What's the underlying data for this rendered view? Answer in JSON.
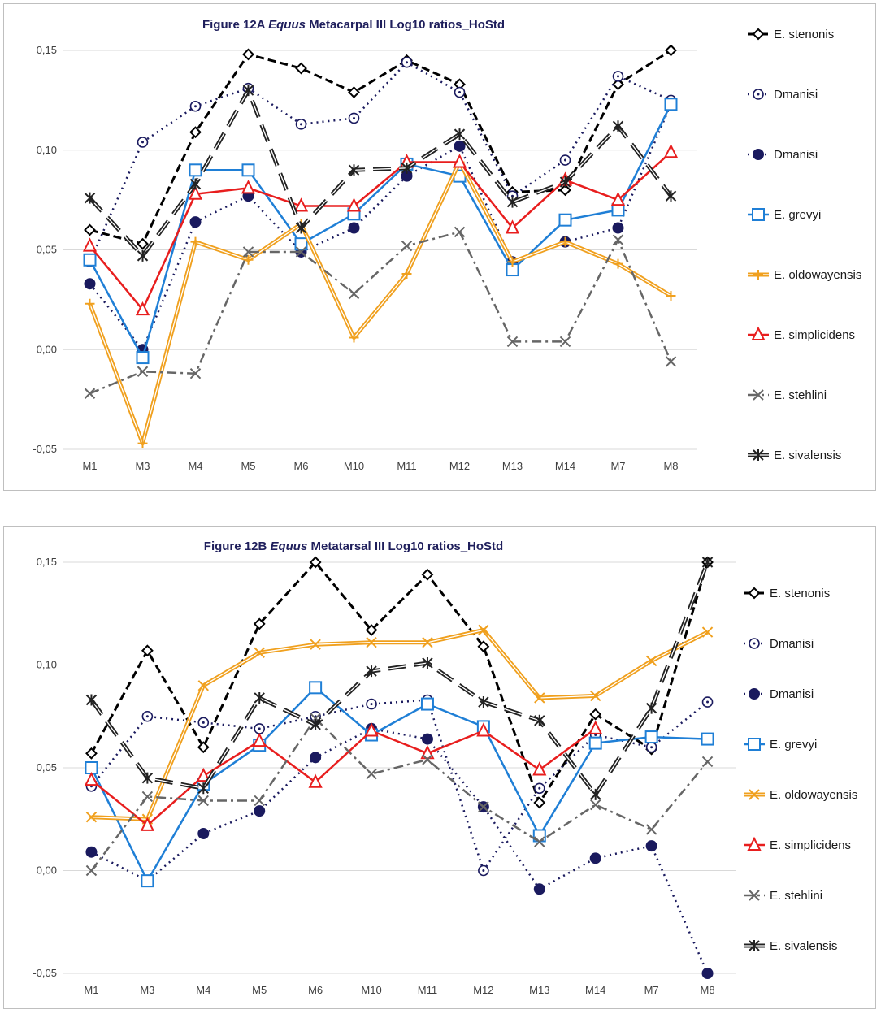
{
  "chart_data": [
    {
      "type": "line",
      "title_prefix": "Figure 12A ",
      "title_italic": "Equus",
      "title_suffix": " Metacarpal III Log10 ratios_HoStd",
      "categories": [
        "M1",
        "M3",
        "M4",
        "M5",
        "M6",
        "M10",
        "M11",
        "M12",
        "M13",
        "M14",
        "M7",
        "M8"
      ],
      "ylim": [
        -0.05,
        0.15
      ],
      "yticks": [
        "-0,05",
        "0,00",
        "0,05",
        "0,10",
        "0,15"
      ],
      "series": [
        {
          "name": "E. stenonis",
          "marker": "diamond",
          "color": "#000000",
          "dash": "10,5",
          "width": 3,
          "values": [
            0.06,
            0.053,
            0.109,
            0.148,
            0.141,
            0.129,
            0.145,
            0.133,
            0.079,
            0.08,
            0.133,
            0.15
          ]
        },
        {
          "name": "Dmanisi",
          "marker": "circle-open",
          "color": "#1a1a5e",
          "dash": "2,5",
          "width": 2.5,
          "values": [
            0.044,
            0.104,
            0.122,
            0.131,
            0.113,
            0.116,
            0.144,
            0.129,
            0.077,
            0.095,
            0.137,
            0.125
          ]
        },
        {
          "name": "Dmanisi",
          "marker": "circle-filled",
          "color": "#1a1a5e",
          "dash": "2,5",
          "width": 2.5,
          "values": [
            0.033,
            0.0,
            0.064,
            0.077,
            0.049,
            0.061,
            0.087,
            0.102,
            0.044,
            0.054,
            0.061,
            0.123
          ]
        },
        {
          "name": "E. grevyi",
          "marker": "square",
          "color": "#1f7fd6",
          "dash": "",
          "width": 2.5,
          "values": [
            0.045,
            -0.004,
            0.09,
            0.09,
            0.053,
            0.068,
            0.093,
            0.087,
            0.04,
            0.065,
            0.07,
            0.123
          ]
        },
        {
          "name": "E. oldowayensis",
          "marker": "plus",
          "color": "#f0a01e",
          "dash": "",
          "width": 2,
          "double": true,
          "values": [
            0.023,
            -0.047,
            0.054,
            0.045,
            0.063,
            0.006,
            0.038,
            0.094,
            0.044,
            0.054,
            0.043,
            0.027
          ]
        },
        {
          "name": "E. simplicidens",
          "marker": "triangle",
          "color": "#e81e1e",
          "dash": "",
          "width": 2.5,
          "values": [
            0.052,
            0.02,
            0.078,
            0.081,
            0.072,
            0.072,
            0.094,
            0.094,
            0.061,
            0.085,
            0.075,
            0.099
          ]
        },
        {
          "name": "E. stehlini",
          "marker": "x",
          "color": "#666666",
          "dash": "12,5,3,5",
          "width": 2.5,
          "values": [
            -0.022,
            -0.011,
            -0.012,
            0.049,
            0.049,
            0.028,
            0.052,
            0.059,
            0.004,
            0.004,
            0.055,
            -0.006
          ]
        },
        {
          "name": "E. sivalensis",
          "marker": "star",
          "color": "#222222",
          "dash": "22,10",
          "width": 2,
          "double": true,
          "values": [
            0.076,
            0.047,
            0.083,
            0.13,
            0.061,
            0.09,
            0.091,
            0.108,
            0.074,
            0.084,
            0.112,
            0.077
          ]
        }
      ]
    },
    {
      "type": "line",
      "title_prefix": "Figure 12B ",
      "title_italic": "Equus",
      "title_suffix": " Metatarsal III Log10 ratios_HoStd",
      "categories": [
        "M1",
        "M3",
        "M4",
        "M5",
        "M6",
        "M10",
        "M11",
        "M12",
        "M13",
        "M14",
        "M7",
        "M8"
      ],
      "ylim": [
        -0.05,
        0.15
      ],
      "yticks": [
        "-0,05",
        "0,00",
        "0,05",
        "0,10",
        "0,15"
      ],
      "series": [
        {
          "name": "E. stenonis",
          "marker": "diamond",
          "color": "#000000",
          "dash": "10,5",
          "width": 3,
          "values": [
            0.057,
            0.107,
            0.06,
            0.12,
            0.15,
            0.117,
            0.144,
            0.109,
            0.033,
            0.076,
            0.059,
            0.15
          ]
        },
        {
          "name": "Dmanisi",
          "marker": "circle-open",
          "color": "#1a1a5e",
          "dash": "2,5",
          "width": 2.5,
          "values": [
            0.041,
            0.075,
            0.072,
            0.069,
            0.075,
            0.081,
            0.083,
            0.0,
            0.04,
            0.066,
            0.06,
            0.082
          ]
        },
        {
          "name": "Dmanisi",
          "marker": "circle-filled",
          "color": "#1a1a5e",
          "dash": "2,5",
          "width": 2.5,
          "values": [
            0.009,
            -0.005,
            0.018,
            0.029,
            0.055,
            0.069,
            0.064,
            0.031,
            -0.009,
            0.006,
            0.012,
            -0.05
          ]
        },
        {
          "name": "E. grevyi",
          "marker": "square",
          "color": "#1f7fd6",
          "dash": "",
          "width": 2.5,
          "values": [
            0.05,
            -0.005,
            0.042,
            0.061,
            0.089,
            0.066,
            0.081,
            0.07,
            0.017,
            0.062,
            0.065,
            0.064
          ]
        },
        {
          "name": "E. oldowayensis",
          "marker": "x",
          "color": "#f0a01e",
          "dash": "",
          "width": 2,
          "double": true,
          "values": [
            0.026,
            0.025,
            0.09,
            0.106,
            0.11,
            0.111,
            0.111,
            0.117,
            0.084,
            0.085,
            0.102,
            0.116
          ]
        },
        {
          "name": "E. simplicidens",
          "marker": "triangle",
          "color": "#e81e1e",
          "dash": "",
          "width": 2.5,
          "values": [
            0.044,
            0.022,
            0.046,
            0.063,
            0.043,
            0.068,
            0.057,
            0.068,
            0.049,
            0.069,
            null,
            null
          ]
        },
        {
          "name": "E. stehlini",
          "marker": "x",
          "color": "#666666",
          "dash": "12,5,3,5",
          "width": 2.5,
          "values": [
            0.0,
            0.036,
            0.034,
            0.034,
            0.074,
            0.047,
            0.054,
            0.031,
            0.014,
            0.032,
            0.02,
            0.053
          ]
        },
        {
          "name": "E. sivalensis",
          "marker": "star",
          "color": "#222222",
          "dash": "22,10",
          "width": 2,
          "double": true,
          "values": [
            0.083,
            0.045,
            0.04,
            0.084,
            0.071,
            0.097,
            0.101,
            0.082,
            0.073,
            0.037,
            0.079,
            0.15
          ]
        }
      ]
    }
  ]
}
